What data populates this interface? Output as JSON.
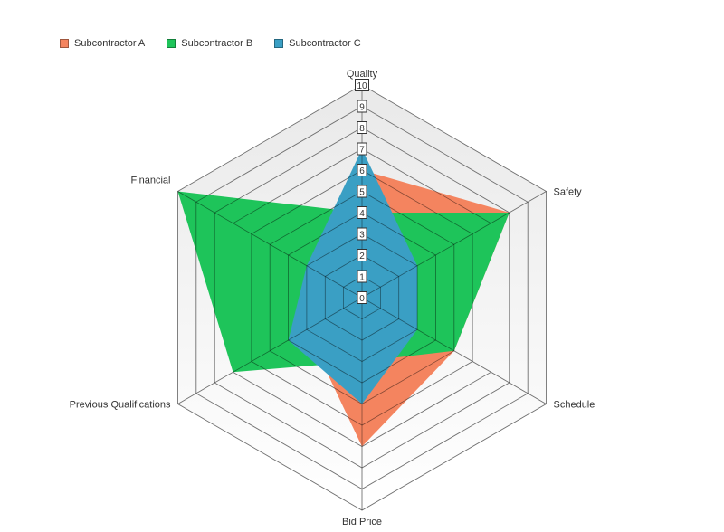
{
  "chart_data": {
    "type": "radar",
    "title": "",
    "categories": [
      "Quality",
      "Safety",
      "Schedule",
      "Bid Price",
      "Previous Qualifications",
      "Financial"
    ],
    "rlim": [
      0,
      10
    ],
    "ticks": [
      "0",
      "1",
      "2",
      "3",
      "4",
      "5",
      "6",
      "7",
      "8",
      "9",
      "10"
    ],
    "grid": true,
    "legend_position": "top-left",
    "series": [
      {
        "name": "Subcontractor A",
        "color": "#f4845f",
        "values": [
          6,
          8,
          5,
          7,
          3,
          3
        ]
      },
      {
        "name": "Subcontractor B",
        "color": "#1ec45a",
        "values": [
          4,
          8,
          5,
          3,
          7,
          10
        ]
      },
      {
        "name": "Subcontractor C",
        "color": "#3a9fc4",
        "values": [
          7,
          3,
          3,
          5,
          4,
          3
        ]
      }
    ]
  }
}
